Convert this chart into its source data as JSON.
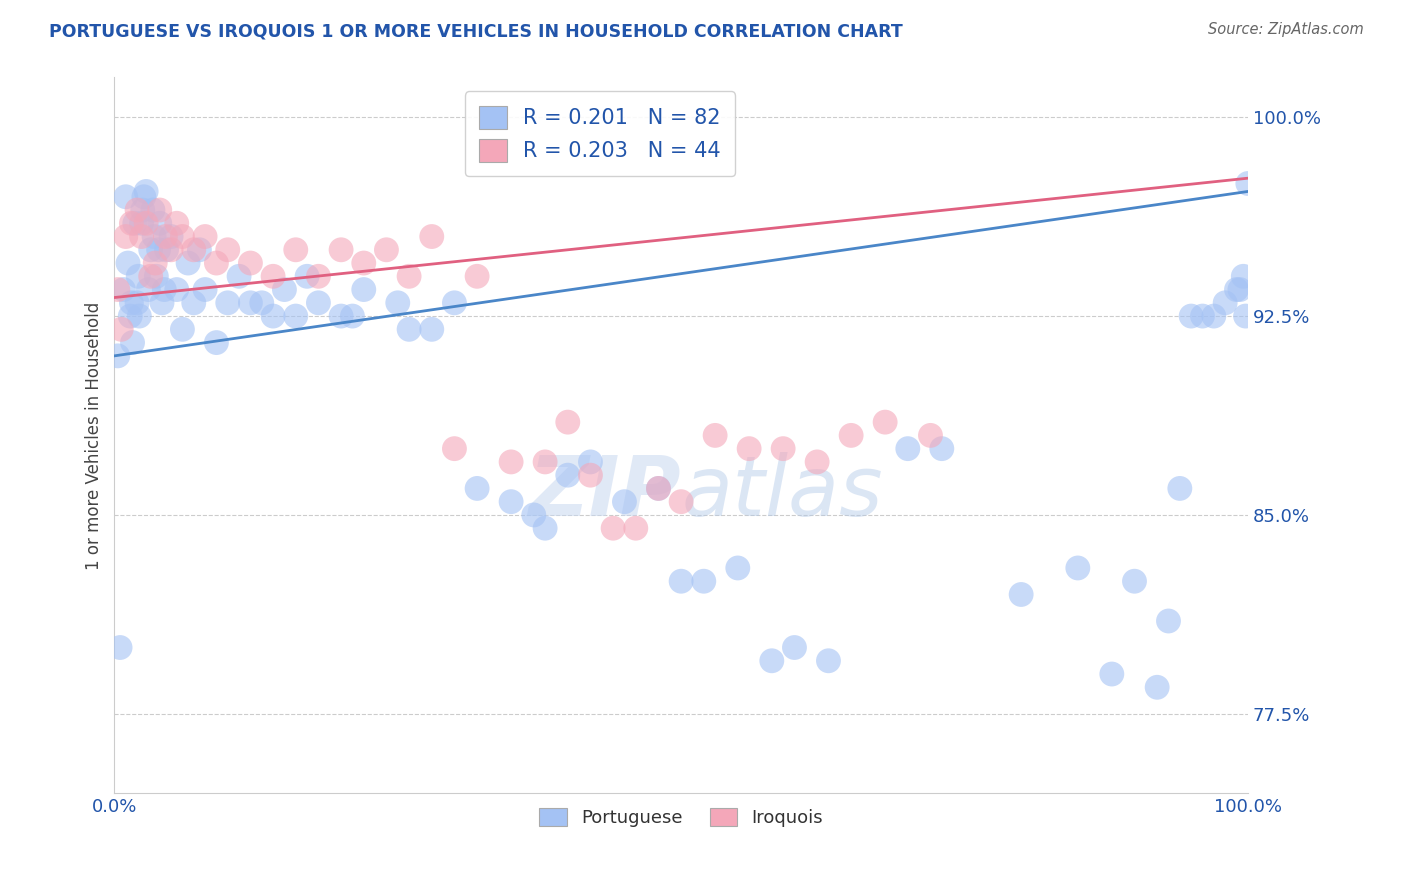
{
  "title": "PORTUGUESE VS IROQUOIS 1 OR MORE VEHICLES IN HOUSEHOLD CORRELATION CHART",
  "source_text": "Source: ZipAtlas.com",
  "ylabel": "1 or more Vehicles in Household",
  "xlim": [
    0.0,
    100.0
  ],
  "ylim": [
    74.5,
    101.5
  ],
  "yticks": [
    77.5,
    85.0,
    92.5,
    100.0
  ],
  "ytick_labels": [
    "77.5%",
    "85.0%",
    "92.5%",
    "100.0%"
  ],
  "title_color": "#2255aa",
  "axis_color": "#2255aa",
  "source_color": "#666666",
  "portuguese_color": "#a4c2f4",
  "iroquois_color": "#f4a7b9",
  "R_portuguese": 0.201,
  "N_portuguese": 82,
  "R_iroquois": 0.203,
  "N_iroquois": 44,
  "port_line_color": "#4a86c8",
  "iroq_line_color": "#e06080",
  "portuguese_intercept": 91.0,
  "portuguese_slope": 0.062,
  "iroquois_intercept": 93.2,
  "iroquois_slope": 0.045,
  "watermark_zip": "ZIP",
  "watermark_atlas": "atlas",
  "legend_portuguese_label": "Portuguese",
  "legend_iroquois_label": "Iroquois",
  "portuguese_x": [
    0.3,
    0.5,
    0.8,
    1.0,
    1.2,
    1.4,
    1.5,
    1.6,
    1.8,
    2.0,
    2.1,
    2.2,
    2.4,
    2.5,
    2.6,
    2.8,
    3.0,
    3.2,
    3.4,
    3.5,
    3.7,
    3.9,
    4.0,
    4.2,
    4.4,
    4.6,
    5.0,
    5.5,
    6.0,
    6.5,
    7.0,
    7.5,
    8.0,
    9.0,
    10.0,
    11.0,
    12.0,
    13.0,
    14.0,
    15.0,
    16.0,
    17.0,
    18.0,
    20.0,
    21.0,
    22.0,
    25.0,
    26.0,
    28.0,
    30.0,
    32.0,
    35.0,
    37.0,
    38.0,
    40.0,
    42.0,
    45.0,
    48.0,
    50.0,
    52.0,
    55.0,
    58.0,
    60.0,
    63.0,
    70.0,
    73.0,
    80.0,
    85.0,
    88.0,
    90.0,
    92.0,
    93.0,
    94.0,
    95.0,
    96.0,
    97.0,
    98.0,
    99.0,
    99.3,
    99.6,
    99.8,
    100.0
  ],
  "portuguese_y": [
    91.0,
    80.0,
    93.5,
    97.0,
    94.5,
    92.5,
    93.0,
    91.5,
    96.0,
    93.0,
    94.0,
    92.5,
    96.0,
    96.5,
    97.0,
    97.2,
    93.5,
    95.0,
    96.5,
    95.5,
    94.0,
    95.0,
    96.0,
    93.0,
    93.5,
    95.0,
    95.5,
    93.5,
    92.0,
    94.5,
    93.0,
    95.0,
    93.5,
    91.5,
    93.0,
    94.0,
    93.0,
    93.0,
    92.5,
    93.5,
    92.5,
    94.0,
    93.0,
    92.5,
    92.5,
    93.5,
    93.0,
    92.0,
    92.0,
    93.0,
    86.0,
    85.5,
    85.0,
    84.5,
    86.5,
    87.0,
    85.5,
    86.0,
    82.5,
    82.5,
    83.0,
    79.5,
    80.0,
    79.5,
    87.5,
    87.5,
    82.0,
    83.0,
    79.0,
    82.5,
    78.5,
    81.0,
    86.0,
    92.5,
    92.5,
    92.5,
    93.0,
    93.5,
    93.5,
    94.0,
    92.5,
    97.5
  ],
  "iroquois_x": [
    0.3,
    0.6,
    1.0,
    1.5,
    2.0,
    2.4,
    2.8,
    3.2,
    3.6,
    4.0,
    4.5,
    5.0,
    5.5,
    6.0,
    7.0,
    8.0,
    9.0,
    10.0,
    12.0,
    14.0,
    16.0,
    18.0,
    20.0,
    22.0,
    24.0,
    26.0,
    28.0,
    30.0,
    32.0,
    35.0,
    38.0,
    40.0,
    42.0,
    44.0,
    46.0,
    48.0,
    50.0,
    53.0,
    56.0,
    59.0,
    62.0,
    65.0,
    68.0,
    72.0
  ],
  "iroquois_y": [
    93.5,
    92.0,
    95.5,
    96.0,
    96.5,
    95.5,
    96.0,
    94.0,
    94.5,
    96.5,
    95.5,
    95.0,
    96.0,
    95.5,
    95.0,
    95.5,
    94.5,
    95.0,
    94.5,
    94.0,
    95.0,
    94.0,
    95.0,
    94.5,
    95.0,
    94.0,
    95.5,
    87.5,
    94.0,
    87.0,
    87.0,
    88.5,
    86.5,
    84.5,
    84.5,
    86.0,
    85.5,
    88.0,
    87.5,
    87.5,
    87.0,
    88.0,
    88.5,
    88.0
  ]
}
